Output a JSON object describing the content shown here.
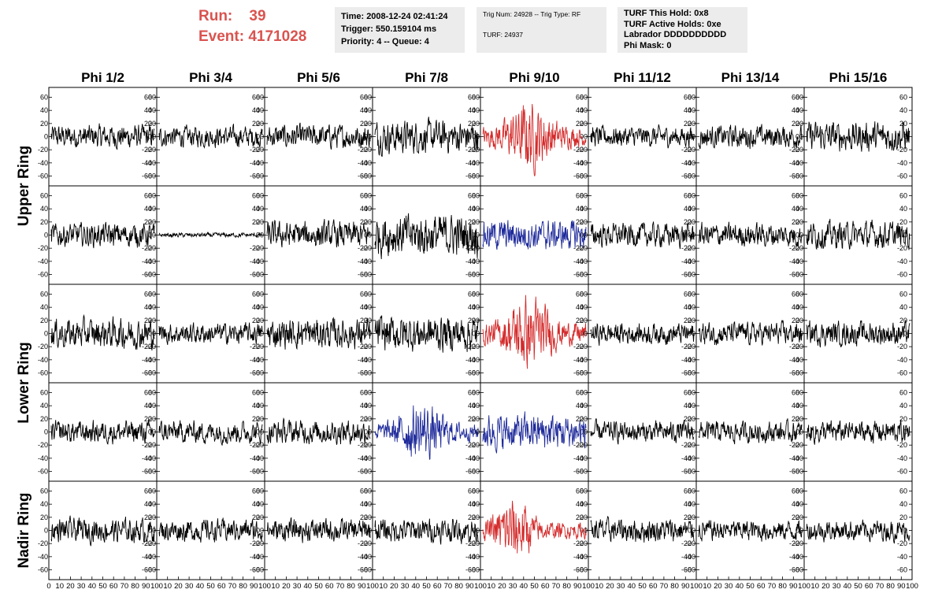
{
  "header": {
    "run_label": "Run:",
    "run_value": "39",
    "event_label": "Event:",
    "event_value": "4171028",
    "time_line": "Time: 2008-12-24 02:41:24",
    "trigger_line": "Trigger: 550.159104 ms",
    "priority_line": "Priority: 4 -- Queue: 4",
    "trig_line": "Trig Num: 24928 -- Trig Type: RF",
    "turf_line": "TURF: 24937",
    "turf_hold_line": "TURF This Hold: 0x8",
    "turf_active_line": "TURF Active Holds: 0xe",
    "labrador_line": "Labrador DDDDDDDDDD",
    "phi_mask_line": "Phi Mask: 0",
    "colors": {
      "run_text": "#d9534f",
      "info_bg": "#ececec"
    }
  },
  "chart_data": {
    "type": "line",
    "columns": [
      "Phi 1/2",
      "Phi 3/4",
      "Phi 5/6",
      "Phi 7/8",
      "Phi 9/10",
      "Phi 11/12",
      "Phi 13/14",
      "Phi 15/16"
    ],
    "ring_labels": [
      {
        "label": "Upper Ring",
        "rows": [
          0,
          1
        ]
      },
      {
        "label": "Lower Ring",
        "rows": [
          2,
          3
        ]
      },
      {
        "label": "Nadir Ring",
        "rows": [
          4
        ]
      }
    ],
    "ylim": [
      -75,
      75
    ],
    "y_ticks": [
      -60,
      -40,
      -20,
      0,
      20,
      40,
      60
    ],
    "xlim": [
      0,
      100
    ],
    "x_ticks": [
      0,
      10,
      20,
      30,
      40,
      50,
      60,
      70,
      80,
      90,
      100
    ],
    "n_samples": 256,
    "colors": {
      "default": "#000000",
      "red": "#d42a2a",
      "blue": "#1e2a9a"
    },
    "series_amplitude": [
      [
        16,
        14,
        16,
        22,
        38,
        14,
        15,
        20
      ],
      [
        16,
        3,
        18,
        28,
        20,
        16,
        16,
        18
      ],
      [
        20,
        14,
        20,
        24,
        40,
        14,
        15,
        16
      ],
      [
        15,
        15,
        16,
        32,
        24,
        14,
        14,
        15
      ],
      [
        16,
        15,
        15,
        16,
        36,
        16,
        14,
        14
      ]
    ],
    "series_color": [
      [
        "default",
        "default",
        "default",
        "default",
        "red",
        "default",
        "default",
        "default"
      ],
      [
        "default",
        "default",
        "default",
        "default",
        "blue",
        "default",
        "default",
        "default"
      ],
      [
        "default",
        "default",
        "default",
        "default",
        "red",
        "default",
        "default",
        "default"
      ],
      [
        "default",
        "default",
        "default",
        "blue",
        "blue",
        "default",
        "default",
        "default"
      ],
      [
        "default",
        "default",
        "default",
        "default",
        "red",
        "default",
        "default",
        "default"
      ]
    ],
    "series_envelope": [
      [
        "flat",
        "flat",
        "flat",
        "flat",
        "pulse",
        "flat",
        "flat",
        "flat"
      ],
      [
        "flat",
        "flat",
        "flat",
        "flat",
        "flat",
        "flat",
        "flat",
        "flat"
      ],
      [
        "flat",
        "flat",
        "flat",
        "flat",
        "pulse",
        "flat",
        "flat",
        "flat"
      ],
      [
        "flat",
        "flat",
        "flat",
        "pulse",
        "flat",
        "flat",
        "flat",
        "flat"
      ],
      [
        "flat",
        "flat",
        "flat",
        "flat",
        "early-pulse",
        "flat",
        "flat",
        "flat"
      ]
    ]
  }
}
